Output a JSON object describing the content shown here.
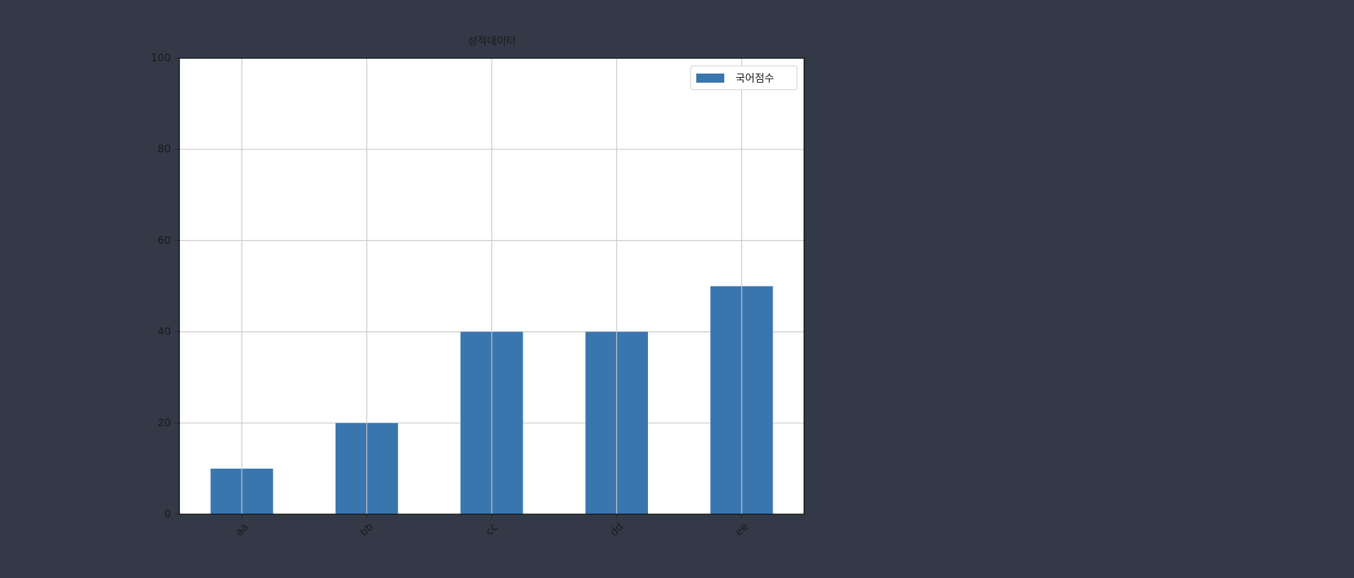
{
  "chart_data": {
    "type": "bar",
    "title": "성적데이터",
    "categories": [
      "aa",
      "bb",
      "cc",
      "dd",
      "ee"
    ],
    "series": [
      {
        "name": "국어점수",
        "color": "#3a76ae",
        "values": [
          10,
          20,
          40,
          40,
          50
        ]
      }
    ],
    "ylim": [
      0,
      100
    ],
    "yticks": [
      0,
      20,
      40,
      60,
      80,
      100
    ],
    "grid": true,
    "legend": "upper right"
  }
}
